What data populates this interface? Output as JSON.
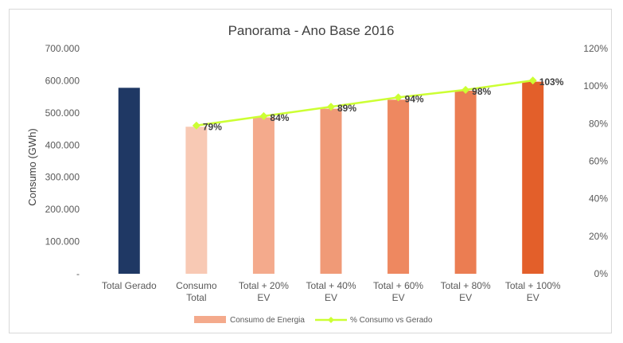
{
  "chart_data": {
    "type": "bar",
    "title": "Panorama - Ano Base 2016",
    "ylabel": "Consumo  (GWh)",
    "xlabel": "",
    "categories": [
      [
        "Total Gerado"
      ],
      [
        "Consumo",
        "Total"
      ],
      [
        "Total + 20%",
        "EV"
      ],
      [
        "Total + 40%",
        "EV"
      ],
      [
        "Total + 60%",
        "EV"
      ],
      [
        "Total + 80%",
        "EV"
      ],
      [
        "Total + 100%",
        "EV"
      ]
    ],
    "ylim": [
      0,
      700000
    ],
    "y_ticks": [
      "-",
      "100.000",
      "200.000",
      "300.000",
      "400.000",
      "500.000",
      "600.000",
      "700.000"
    ],
    "y2lim": [
      0,
      120
    ],
    "y2_ticks": [
      "0%",
      "20%",
      "40%",
      "60%",
      "80%",
      "100%",
      "120%"
    ],
    "grid": false,
    "legend_position": "bottom",
    "series": [
      {
        "name": "Consumo de Energia",
        "type": "bar",
        "values": [
          578000,
          457000,
          486000,
          513000,
          541000,
          569000,
          597000
        ],
        "colors": [
          "#1f3864",
          "#f8c9b4",
          "#f4aa8c",
          "#f09a77",
          "#ee8860",
          "#eb7d52",
          "#e35f2a"
        ],
        "legend_color": "#f4aa8c"
      },
      {
        "name": "% Consumo vs Gerado",
        "type": "line",
        "axis": "secondary",
        "values": [
          null,
          79,
          84,
          89,
          94,
          98,
          103
        ],
        "data_labels": [
          "",
          "79%",
          "84%",
          "89%",
          "94%",
          "98%",
          "103%"
        ],
        "color": "#ccff33"
      }
    ]
  }
}
